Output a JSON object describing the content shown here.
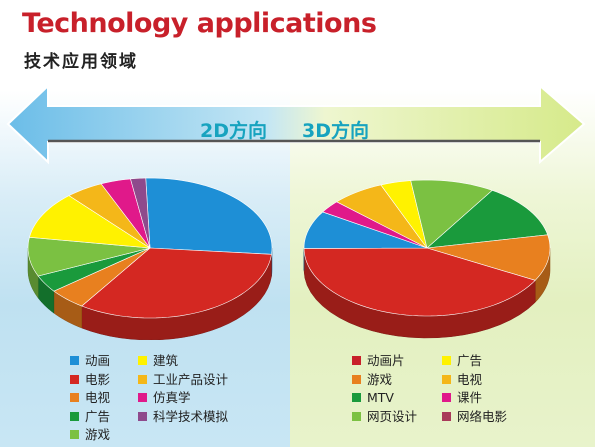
{
  "header": {
    "title": "Technology applications",
    "subtitle": "技术应用领域"
  },
  "arrow": {
    "left_label": "2D方向",
    "right_label": "3D方向"
  },
  "chart_data": [
    {
      "type": "pie",
      "title": "2D方向",
      "slices": [
        {
          "name": "动画",
          "value": 27,
          "color": "#1e8fd6"
        },
        {
          "name": "电影",
          "value": 33,
          "color": "#d42822"
        },
        {
          "name": "电视",
          "value": 5,
          "color": "#e8801f"
        },
        {
          "name": "广告",
          "value": 4,
          "color": "#1a9a3c"
        },
        {
          "name": "游戏",
          "value": 9,
          "color": "#7bc142"
        },
        {
          "name": "建筑",
          "value": 11,
          "color": "#fff200"
        },
        {
          "name": "工业产品设计",
          "value": 5,
          "color": "#f4b719"
        },
        {
          "name": "仿真学",
          "value": 4,
          "color": "#e0198a"
        },
        {
          "name": "科学技术模拟",
          "value": 2,
          "color": "#8e4a8c"
        }
      ],
      "legend_columns": [
        [
          "动画",
          "电影",
          "电视",
          "广告",
          "游戏"
        ],
        [
          "建筑",
          "工业产品设计",
          "仿真学",
          "科学技术模拟"
        ]
      ]
    },
    {
      "type": "pie",
      "title": "3D方向",
      "slices": [
        {
          "name": "MTV",
          "value": 13,
          "color": "#1a9a3c"
        },
        {
          "name": "课件",
          "value": 11,
          "color": "#e8801f"
        },
        {
          "name": "动画片",
          "value": 42,
          "color": "#d42822"
        },
        {
          "name": "网页设计",
          "value": 9,
          "color": "#1e8fd6"
        },
        {
          "name": "网络电影",
          "value": 3,
          "color": "#e0198a"
        },
        {
          "name": "游戏",
          "value": 7,
          "color": "#f4b719"
        },
        {
          "name": "广告",
          "value": 4,
          "color": "#fff200"
        },
        {
          "name": "电视",
          "value": 11,
          "color": "#7bc142"
        }
      ],
      "legend_columns": [
        [
          "动画片",
          "游戏",
          "MTV",
          "网页设计"
        ],
        [
          "广告",
          "电视",
          "课件",
          "网络电影"
        ]
      ],
      "legend_colors": {
        "动画片": "#c8202a",
        "游戏": "#e8801f",
        "MTV": "#1a9a3c",
        "网页设计": "#7bc142",
        "广告": "#fff200",
        "电视": "#f4b719",
        "课件": "#e0198a",
        "网络电影": "#a93a5a"
      }
    }
  ]
}
